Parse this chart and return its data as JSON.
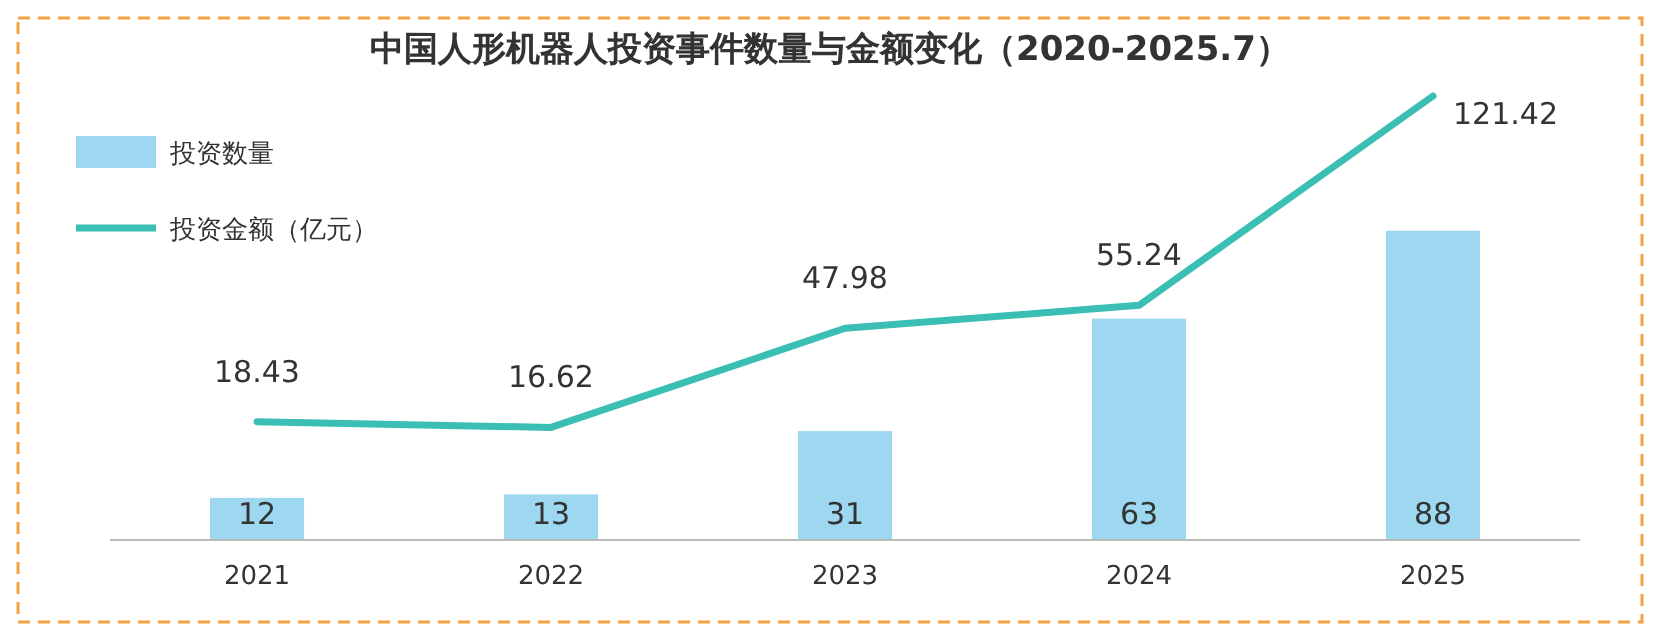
{
  "chart_data": {
    "type": "bar",
    "title": "中国人形机器人投资事件数量与金额变化（2020-2025.7）",
    "categories": [
      "2021",
      "2022",
      "2023",
      "2024",
      "2025"
    ],
    "series": [
      {
        "name": "投资数量",
        "color": "#9dd8f0",
        "values": [
          12,
          13,
          31,
          63,
          88
        ]
      },
      {
        "name": "投资金额（亿元）",
        "type": "line",
        "axis": "y2",
        "color": "#3bbfb4",
        "values": [
          18.43,
          16.62,
          47.98,
          55.24,
          121.42
        ]
      }
    ],
    "data_labels": true,
    "legend": "top left",
    "grid": false,
    "marker": "none",
    "line_style": "solid"
  }
}
